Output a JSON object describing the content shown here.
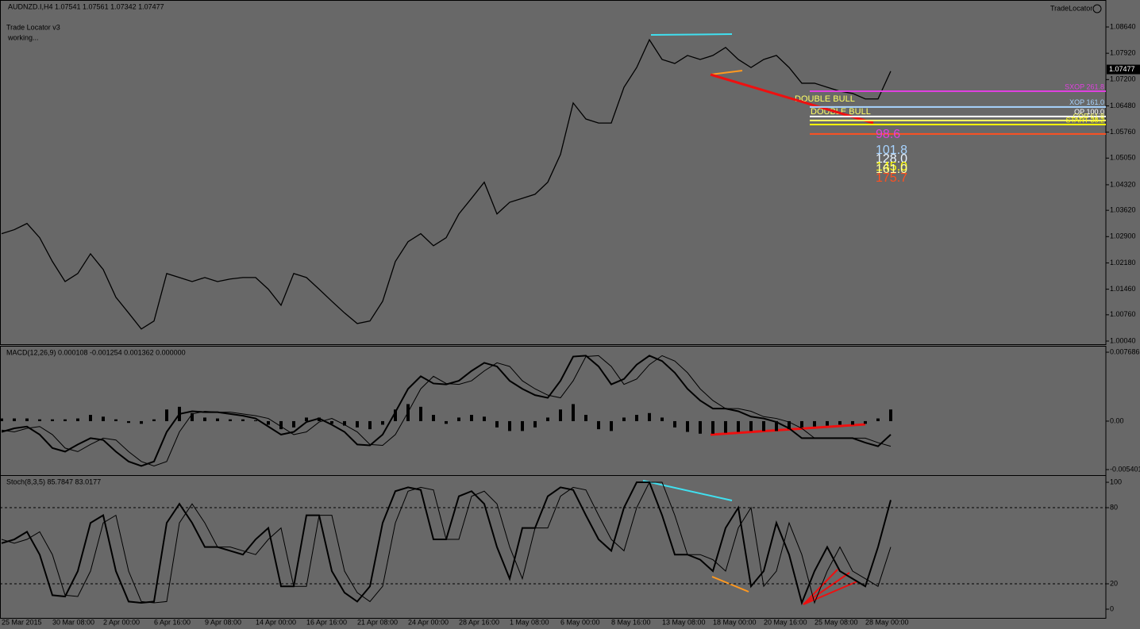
{
  "chart_data": [
    {
      "type": "line",
      "title": "AUDNZD.I,H4  1.07541 1.07561 1.07342 1.07477",
      "color": "#000000",
      "categories": [
        "25 Mar 2015",
        null,
        null,
        null,
        "30 Mar 08:00",
        null,
        null,
        null,
        "2 Apr 00:00",
        null,
        null,
        null,
        "6 Apr 16:00",
        null,
        null,
        null,
        "9 Apr 08:00",
        null,
        null,
        null,
        "14 Apr 00:00",
        null,
        null,
        null,
        "16 Apr 16:00",
        null,
        null,
        null,
        "21 Apr 08:00",
        null,
        null,
        null,
        "24 Apr 00:00",
        null,
        null,
        null,
        "28 Apr 16:00",
        null,
        null,
        null,
        "1 May 08:00",
        null,
        null,
        null,
        "6 May 00:00",
        null,
        null,
        null,
        "8 May 16:00",
        null,
        null,
        null,
        "13 May 08:00",
        null,
        null,
        null,
        "18 May 00:00",
        null,
        null,
        null,
        "20 May 16:00",
        null,
        null,
        null,
        "25 May 08:00",
        null,
        null,
        null,
        "28 May 00:00",
        null,
        null
      ],
      "values": [
        1.0298,
        1.0309,
        1.0326,
        1.0287,
        1.0222,
        1.0167,
        1.0189,
        1.0243,
        1.02,
        1.0124,
        1.0081,
        1.0037,
        1.0059,
        1.0189,
        1.0178,
        1.0167,
        1.0178,
        1.0167,
        1.0174,
        1.0178,
        1.0178,
        1.0146,
        1.0102,
        1.0189,
        1.0178,
        1.0146,
        1.0113,
        1.0081,
        1.0052,
        1.0059,
        1.0113,
        1.0222,
        1.0276,
        1.0298,
        1.0265,
        1.0287,
        1.0352,
        1.0395,
        1.0439,
        1.0352,
        1.0384,
        1.0395,
        1.0406,
        1.0439,
        1.0515,
        1.0656,
        1.0612,
        1.0601,
        1.0601,
        1.0699,
        1.0753,
        1.0829,
        1.0775,
        1.0764,
        1.0786,
        1.0775,
        1.0786,
        1.0808,
        1.0775,
        1.0753,
        1.0775,
        1.0786,
        1.0753,
        1.071,
        1.071,
        1.0699,
        1.0688,
        1.0682,
        1.0667,
        1.0667,
        1.0743
      ],
      "ylim": [
        0.99975,
        1.09335
      ],
      "yticks": [
        {
          "value": 1.0864,
          "label": "1.08640"
        },
        {
          "value": 1.0792,
          "label": "1.07920"
        },
        {
          "value": 1.072,
          "label": "1.07200"
        },
        {
          "value": 1.0648,
          "label": "1.06480"
        },
        {
          "value": 1.0576,
          "label": "1.05760"
        },
        {
          "value": 1.0505,
          "label": "1.05050"
        },
        {
          "value": 1.0432,
          "label": "1.04320"
        },
        {
          "value": 1.0362,
          "label": "1.03620"
        },
        {
          "value": 1.029,
          "label": "1.02900"
        },
        {
          "value": 1.0218,
          "label": "1.02180"
        },
        {
          "value": 1.0146,
          "label": "1.01460"
        },
        {
          "value": 1.0076,
          "label": "1.00760"
        },
        {
          "value": 1.0004,
          "label": "1.00040"
        }
      ],
      "last": 1.07477,
      "levels": [
        {
          "label": "SXOP 261.8",
          "value": 1.0688,
          "color": "#e040e0"
        },
        {
          "label": "XOP 161.0",
          "value": 1.0645,
          "color": "#a8d4ff"
        },
        {
          "label": "OP 100.0",
          "value": 1.0619,
          "color": "#ffffff"
        },
        {
          "label": "COP 61.8",
          "value": 1.0608,
          "color": "#ffff66"
        },
        {
          "label": "START 38.2",
          "value": 1.0597,
          "color": "#ffff00"
        },
        {
          "value": 1.0571,
          "color": "#ff5020"
        }
      ]
    },
    {
      "type": "macd",
      "title": "MACD(12,26,9) 0.000108 -0.001254 0.001362 0.000000",
      "color": "#000000",
      "bars": [
        0.0003,
        0.0003,
        0.0003,
        0.0002,
        0.0002,
        0.0002,
        0.0003,
        0.0007,
        0.0005,
        0.0002,
        -0.0002,
        -0.0003,
        0.0002,
        0.0013,
        0.0016,
        0.0009,
        0.0004,
        0.0003,
        0.0002,
        0.0002,
        0.0001,
        -0.0004,
        -0.0009,
        -0.0007,
        0.0004,
        0.0004,
        -0.0003,
        -0.0005,
        -0.0007,
        -0.0009,
        -0.0004,
        0.0013,
        0.0019,
        0.0016,
        0.0007,
        -0.0003,
        0.0004,
        0.0007,
        0.0005,
        -0.0007,
        -0.0011,
        -0.0011,
        -0.0007,
        0.0004,
        0.0013,
        0.0019,
        0.0007,
        -0.0009,
        -0.0011,
        0.0004,
        0.0007,
        0.0009,
        0.0004,
        -0.0007,
        -0.0012,
        -0.0014,
        -0.0014,
        -0.0013,
        -0.0012,
        -0.0011,
        -0.0011,
        -0.0011,
        -0.0009,
        -0.0007,
        -0.0006,
        -0.0005,
        -0.0004,
        -0.0004,
        -0.0003,
        0.0003,
        0.0013
      ],
      "values": [
        -0.0012,
        -0.0008,
        -0.0006,
        -0.0015,
        -0.003,
        -0.0034,
        -0.0026,
        -0.0019,
        -0.0021,
        -0.0034,
        -0.0045,
        -0.005,
        -0.0045,
        -0.0012,
        0.0008,
        0.0011,
        0.001,
        0.001,
        0.0008,
        0.0006,
        0.0003,
        -0.0006,
        -0.0015,
        -0.0012,
        -0.0001,
        0.0003,
        -0.0004,
        -0.0012,
        -0.0026,
        -0.0027,
        -0.0015,
        0.001,
        0.0036,
        0.005,
        0.0042,
        0.0041,
        0.0045,
        0.0056,
        0.0065,
        0.0061,
        0.0045,
        0.0036,
        0.0029,
        0.0026,
        0.0045,
        0.0072,
        0.0073,
        0.0061,
        0.0041,
        0.0047,
        0.0063,
        0.0073,
        0.0067,
        0.0054,
        0.0036,
        0.0023,
        0.0014,
        0.0014,
        0.0011,
        0.0005,
        0.0003,
        -0.0001,
        -0.0008,
        -0.0019,
        -0.0019,
        -0.0019,
        -0.0019,
        -0.0019,
        -0.0024,
        -0.0028,
        -0.0015
      ],
      "signal": [
        -0.001,
        -0.0012,
        -0.0008,
        -0.0006,
        -0.0015,
        -0.003,
        -0.0034,
        -0.0026,
        -0.0019,
        -0.0021,
        -0.0034,
        -0.0045,
        -0.005,
        -0.0045,
        -0.0012,
        0.0008,
        0.0011,
        0.001,
        0.001,
        0.0008,
        0.0006,
        0.0003,
        -0.0006,
        -0.0015,
        -0.0012,
        -0.0001,
        0.0003,
        -0.0004,
        -0.0012,
        -0.0026,
        -0.0027,
        -0.0015,
        0.001,
        0.0036,
        0.005,
        0.0042,
        0.0041,
        0.0045,
        0.0056,
        0.0065,
        0.0061,
        0.0045,
        0.0036,
        0.0029,
        0.0026,
        0.0045,
        0.0072,
        0.0073,
        0.0061,
        0.0041,
        0.0047,
        0.0063,
        0.0073,
        0.0067,
        0.0054,
        0.0036,
        0.0023,
        0.0014,
        0.0014,
        0.0011,
        0.0005,
        0.0003,
        -0.0001,
        -0.0008,
        -0.0019,
        -0.0019,
        -0.0019,
        -0.0019,
        -0.0019,
        -0.0024,
        -0.0028
      ],
      "ylim": [
        -0.00593,
        0.00822
      ],
      "yticks": [
        0.007686,
        {
          "value": 0,
          "label": "0.00"
        },
        -0.005401
      ]
    },
    {
      "type": "stochastic",
      "title": "Stoch(8,3,5) 85.7847 83.0177",
      "color": "#000000",
      "values": [
        52,
        55,
        61,
        43,
        11,
        10,
        30,
        68,
        74,
        30,
        6,
        5,
        6,
        68,
        83,
        68,
        49,
        49,
        46,
        43,
        55,
        64,
        18,
        18,
        74,
        74,
        30,
        13,
        6,
        18,
        68,
        93,
        96,
        94,
        55,
        55,
        89,
        93,
        83,
        49,
        24,
        64,
        64,
        89,
        96,
        94,
        74,
        55,
        46,
        80,
        100,
        100,
        74,
        43,
        43,
        39,
        30,
        64,
        80,
        18,
        30,
        68,
        43,
        5,
        30,
        49,
        30,
        24,
        18,
        49,
        86
      ],
      "signal": [
        55,
        52,
        55,
        61,
        43,
        11,
        10,
        30,
        68,
        74,
        30,
        6,
        5,
        6,
        68,
        83,
        68,
        49,
        49,
        46,
        43,
        55,
        64,
        18,
        18,
        74,
        74,
        30,
        13,
        6,
        18,
        68,
        93,
        96,
        94,
        55,
        55,
        89,
        93,
        83,
        49,
        24,
        64,
        64,
        89,
        96,
        94,
        74,
        55,
        46,
        80,
        100,
        100,
        74,
        43,
        43,
        39,
        30,
        64,
        80,
        18,
        30,
        68,
        43,
        5,
        30,
        49,
        30,
        24,
        18,
        49
      ],
      "ylim": [
        -6.25,
        104.4
      ],
      "yticks": [
        100,
        80,
        20,
        0
      ],
      "levels": [
        80,
        20
      ]
    }
  ],
  "indicator": {
    "name": "TradeLocator",
    "title": "Trade Locator v3",
    "status": "working..."
  },
  "patterns": [
    "DOUBLE BULL",
    "DOUBLE BULL"
  ],
  "fib_numbers": [
    {
      "label": "98.6",
      "color": "#e040e0"
    },
    {
      "label": "101.8",
      "color": "#a8d4ff"
    },
    {
      "label": "128.0",
      "color": "#e8f4ff"
    },
    {
      "label": "145.0",
      "color": "#ffff00"
    },
    {
      "label": "161.0",
      "color": "#ffffa0"
    },
    {
      "label": "175.7",
      "color": "#ff5020"
    }
  ]
}
